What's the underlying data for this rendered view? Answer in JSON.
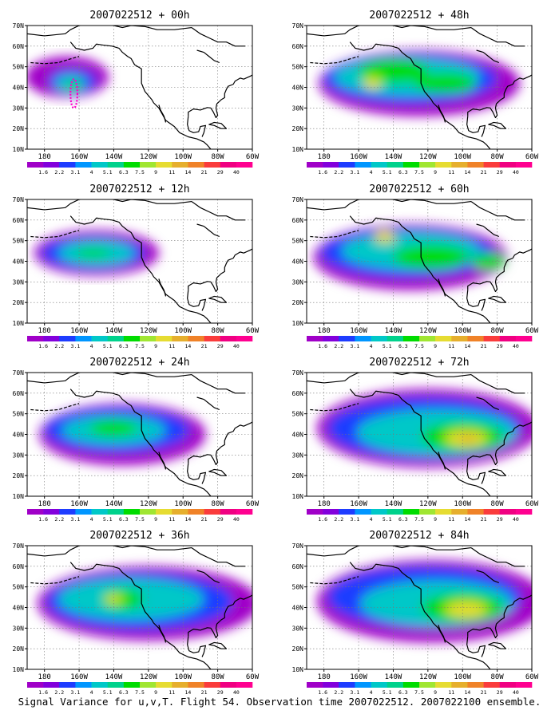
{
  "panels": [
    {
      "title": "2007022512 + 00h"
    },
    {
      "title": "2007022512 + 48h"
    },
    {
      "title": "2007022512 + 12h"
    },
    {
      "title": "2007022512 + 60h"
    },
    {
      "title": "2007022512 + 24h"
    },
    {
      "title": "2007022512 + 72h"
    },
    {
      "title": "2007022512 + 36h"
    },
    {
      "title": "2007022512 + 84h"
    }
  ],
  "axes": {
    "lat_labels": [
      "70N",
      "60N",
      "50N",
      "40N",
      "30N",
      "20N",
      "10N"
    ],
    "lon_labels": [
      "180",
      "160W",
      "140W",
      "120W",
      "100W",
      "80W",
      "60W"
    ]
  },
  "colorbar": {
    "labels": [
      "1.6",
      "2.2",
      "3.1",
      "4",
      "5.1",
      "6.3",
      "7.5",
      "9",
      "11",
      "14",
      "21",
      "29",
      "40"
    ],
    "colors": [
      "#a000c8",
      "#8200dc",
      "#1e3cff",
      "#0096ff",
      "#00c8c8",
      "#00d28c",
      "#00dc00",
      "#a0e632",
      "#e6dc32",
      "#e6af2d",
      "#f08228",
      "#fa3c3c",
      "#f00082",
      "#ff0090"
    ]
  },
  "caption": "Signal Variance for u,v,T. Flight 54. Observation time 2007022512. 2007022100 ensemble."
}
